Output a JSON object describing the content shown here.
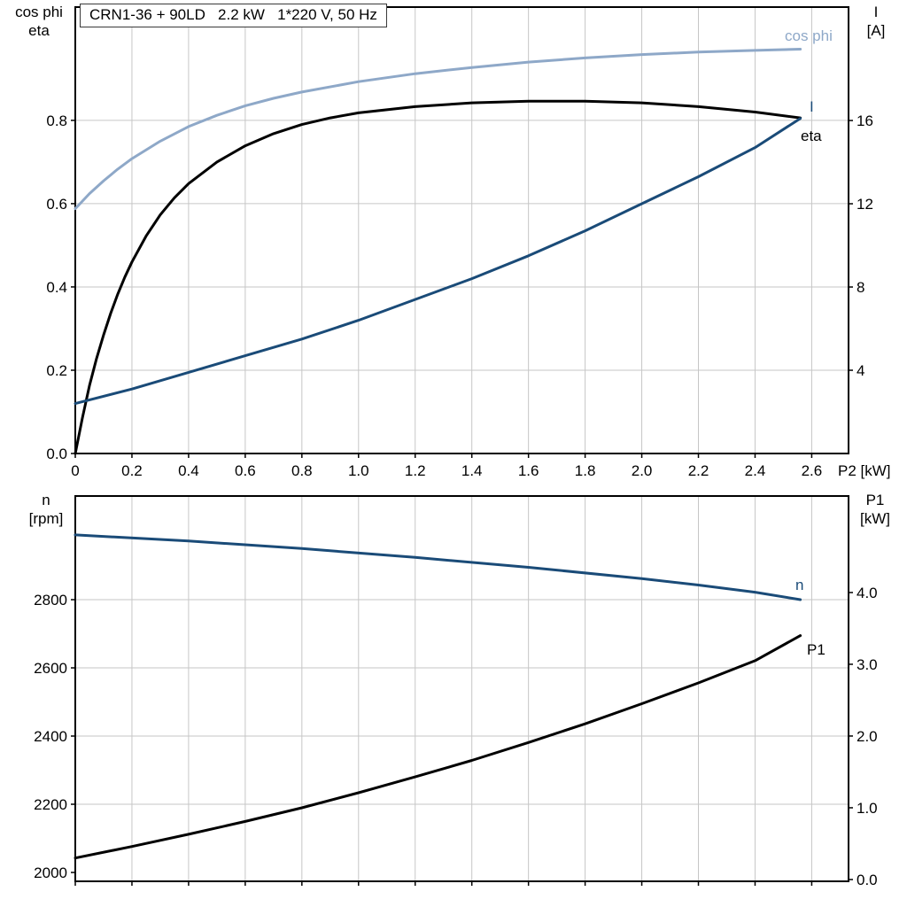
{
  "colors": {
    "dark_blue": "#1a4b78",
    "light_blue": "#8ea8c8",
    "black": "#000000",
    "grid": "#c6c6c6"
  },
  "chart_data": [
    {
      "type": "line",
      "title": "CRN1-36 + 90LD   2.2 kW   1*220 V, 50 Hz",
      "grid": true,
      "legend_position": "curve-end-labels",
      "x_axis": {
        "label": "P2 [kW]",
        "min": 0,
        "max": 2.73,
        "ticks": [
          0,
          0.2,
          0.4,
          0.6,
          0.8,
          1.0,
          1.2,
          1.4,
          1.6,
          1.8,
          2.0,
          2.2,
          2.4,
          2.6
        ],
        "tick_labels": [
          "0",
          "0.2",
          "0.4",
          "0.6",
          "0.8",
          "1.0",
          "1.2",
          "1.4",
          "1.6",
          "1.8",
          "2.0",
          "2.2",
          "2.4",
          "2.6"
        ],
        "show_tick_labels": true
      },
      "y_left": {
        "label_lines": [
          "cos phi",
          "eta"
        ],
        "min": 0,
        "max": 1.072,
        "ticks": [
          0,
          0.2,
          0.4,
          0.6,
          0.8
        ],
        "tick_labels": [
          "0.0",
          "0.2",
          "0.4",
          "0.6",
          "0.8"
        ]
      },
      "y_right": {
        "label_lines": [
          "I",
          "[A]"
        ],
        "min": 0,
        "max": 21.45,
        "ticks": [
          4,
          8,
          12,
          16
        ],
        "tick_labels": [
          "4",
          "8",
          "12",
          "16"
        ]
      },
      "series": [
        {
          "name": "cos phi",
          "axis": "left",
          "color": "#8ea8c8",
          "x": [
            0,
            0.05,
            0.1,
            0.15,
            0.2,
            0.3,
            0.4,
            0.5,
            0.6,
            0.7,
            0.8,
            1.0,
            1.2,
            1.4,
            1.6,
            1.8,
            2.0,
            2.2,
            2.4,
            2.56
          ],
          "y": [
            0.588,
            0.624,
            0.655,
            0.683,
            0.708,
            0.75,
            0.785,
            0.812,
            0.835,
            0.853,
            0.868,
            0.893,
            0.912,
            0.927,
            0.94,
            0.95,
            0.958,
            0.964,
            0.968,
            0.971
          ]
        },
        {
          "name": "eta",
          "axis": "left",
          "color": "#000000",
          "x": [
            0,
            0.025,
            0.05,
            0.075,
            0.1,
            0.125,
            0.15,
            0.175,
            0.2,
            0.25,
            0.3,
            0.35,
            0.4,
            0.5,
            0.6,
            0.7,
            0.8,
            0.9,
            1.0,
            1.2,
            1.4,
            1.6,
            1.8,
            2.0,
            2.2,
            2.4,
            2.56
          ],
          "y": [
            0,
            0.085,
            0.163,
            0.228,
            0.285,
            0.337,
            0.383,
            0.424,
            0.46,
            0.522,
            0.573,
            0.614,
            0.648,
            0.7,
            0.739,
            0.768,
            0.79,
            0.806,
            0.818,
            0.833,
            0.842,
            0.846,
            0.846,
            0.842,
            0.833,
            0.82,
            0.806
          ]
        },
        {
          "name": "I",
          "axis": "right",
          "color": "#1a4b78",
          "x": [
            0,
            0.2,
            0.4,
            0.6,
            0.8,
            1.0,
            1.2,
            1.4,
            1.6,
            1.8,
            2.0,
            2.2,
            2.4,
            2.56
          ],
          "y": [
            2.4,
            3.1,
            3.9,
            4.7,
            5.5,
            6.4,
            7.4,
            8.4,
            9.5,
            10.7,
            12.0,
            13.3,
            14.7,
            16.1
          ]
        }
      ]
    },
    {
      "type": "line",
      "title": "",
      "grid": true,
      "legend_position": "curve-end-labels",
      "x_axis": {
        "label": "",
        "min": 0,
        "max": 2.73,
        "ticks": [
          0,
          0.2,
          0.4,
          0.6,
          0.8,
          1.0,
          1.2,
          1.4,
          1.6,
          1.8,
          2.0,
          2.2,
          2.4,
          2.6
        ],
        "tick_labels": [],
        "show_tick_labels": false
      },
      "y_left": {
        "label_lines": [
          "n",
          "[rpm]"
        ],
        "min": 1974,
        "max": 3104,
        "ticks": [
          2000,
          2200,
          2400,
          2600,
          2800
        ],
        "tick_labels": [
          "2000",
          "2200",
          "2400",
          "2600",
          "2800"
        ]
      },
      "y_right": {
        "label_lines": [
          "P1",
          "[kW]"
        ],
        "min": -0.025,
        "max": 5.345,
        "ticks": [
          0,
          1,
          2,
          3,
          4
        ],
        "tick_labels": [
          "0.0",
          "1.0",
          "2.0",
          "3.0",
          "4.0"
        ]
      },
      "series": [
        {
          "name": "n",
          "axis": "left",
          "color": "#1a4b78",
          "x": [
            0,
            0.4,
            0.8,
            1.2,
            1.6,
            2.0,
            2.2,
            2.4,
            2.56
          ],
          "y": [
            2990,
            2972,
            2950,
            2924,
            2895,
            2862,
            2843,
            2822,
            2800
          ]
        },
        {
          "name": "P1",
          "axis": "right",
          "color": "#000000",
          "x": [
            0,
            0.2,
            0.4,
            0.6,
            0.8,
            1.0,
            1.2,
            1.4,
            1.6,
            1.8,
            2.0,
            2.2,
            2.4,
            2.56
          ],
          "y": [
            0.3,
            0.46,
            0.63,
            0.81,
            1.0,
            1.21,
            1.43,
            1.66,
            1.91,
            2.17,
            2.45,
            2.74,
            3.05,
            3.4
          ]
        }
      ]
    }
  ]
}
